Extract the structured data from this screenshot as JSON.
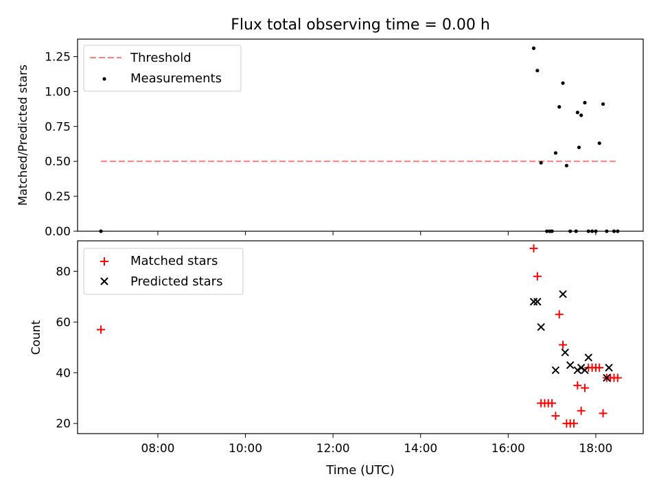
{
  "chart_data": [
    {
      "type": "scatter",
      "title": "Flux total observing time = 0.00 h",
      "xlabel": "",
      "ylabel": "Matched/Predicted stars",
      "ylim": [
        0,
        1.375
      ],
      "yticks": [
        "0.00",
        "0.25",
        "0.50",
        "0.75",
        "1.00",
        "1.25"
      ],
      "legend_position": "top-left",
      "series": [
        {
          "name": "Threshold",
          "kind": "dashed-line",
          "color": "#ff7f7f",
          "x": [
            "06:42",
            "18:30"
          ],
          "y": [
            0.5,
            0.5
          ]
        },
        {
          "name": "Measurements",
          "kind": "dots",
          "color": "#000000",
          "x": [
            "06:42",
            "16:35",
            "16:40",
            "16:45",
            "16:53",
            "16:57",
            "17:00",
            "17:05",
            "17:10",
            "17:15",
            "17:20",
            "17:25",
            "17:33",
            "17:35",
            "17:37",
            "17:40",
            "17:45",
            "17:50",
            "17:55",
            "18:00",
            "18:05",
            "18:10",
            "18:15",
            "18:25",
            "18:30"
          ],
          "y": [
            0.0,
            1.31,
            1.15,
            0.49,
            0.0,
            0.0,
            0.0,
            0.56,
            0.89,
            1.06,
            0.47,
            0.0,
            0.0,
            0.85,
            0.6,
            0.83,
            0.92,
            0.0,
            0.0,
            0.0,
            0.63,
            0.91,
            0.0,
            0.0,
            0.0
          ]
        }
      ]
    },
    {
      "type": "scatter",
      "title": "",
      "xlabel": "Time (UTC)",
      "ylabel": "Count",
      "ylim": [
        16,
        92
      ],
      "yticks": [
        "20",
        "40",
        "60",
        "80"
      ],
      "xlim": [
        "06:10",
        "19:05"
      ],
      "xticks": [
        "08:00",
        "10:00",
        "12:00",
        "14:00",
        "16:00",
        "18:00"
      ],
      "legend_position": "top-left",
      "series": [
        {
          "name": "Matched stars",
          "marker": "plus",
          "color": "#ff0000",
          "x": [
            "06:42",
            "16:35",
            "16:40",
            "16:45",
            "16:50",
            "16:55",
            "17:00",
            "17:05",
            "17:10",
            "17:15",
            "17:20",
            "17:25",
            "17:30",
            "17:35",
            "17:40",
            "17:45",
            "17:50",
            "17:55",
            "18:00",
            "18:05",
            "18:10",
            "18:15",
            "18:20",
            "18:25",
            "18:30"
          ],
          "y": [
            57,
            89,
            78,
            28,
            28,
            28,
            28,
            23,
            63,
            51,
            20,
            20,
            20,
            35,
            25,
            34,
            42,
            42,
            42,
            42,
            24,
            38,
            38,
            38,
            38
          ]
        },
        {
          "name": "Predicted stars",
          "marker": "x",
          "color": "#000000",
          "x": [
            "16:35",
            "16:40",
            "16:45",
            "17:05",
            "17:15",
            "17:18",
            "17:25",
            "17:35",
            "17:40",
            "17:45",
            "17:50",
            "18:15",
            "18:18"
          ],
          "y": [
            68,
            68,
            58,
            41,
            71,
            48,
            43,
            41,
            42,
            41,
            46,
            38,
            42
          ]
        }
      ]
    }
  ]
}
